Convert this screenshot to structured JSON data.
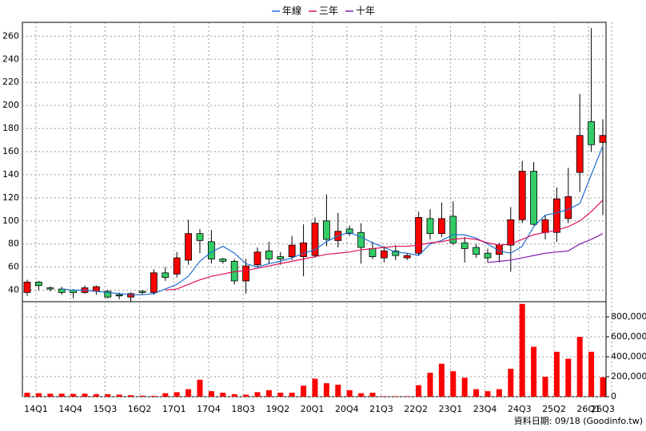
{
  "chart_data": {
    "type": "candlestick",
    "legend": [
      "年線",
      "三年",
      "十年"
    ],
    "source": "資料日期: 09/18 (Goodinfo.tw)",
    "categories": [
      "14Q1",
      null,
      null,
      "14Q4",
      null,
      null,
      "15Q3",
      null,
      null,
      "16Q2",
      null,
      null,
      "17Q1",
      null,
      null,
      "17Q4",
      null,
      null,
      "18Q3",
      null,
      null,
      "19Q2",
      null,
      null,
      "20Q1",
      null,
      null,
      "20Q4",
      null,
      null,
      "21Q3",
      null,
      null,
      "22Q2",
      null,
      null,
      "23Q1",
      null,
      null,
      "23Q4",
      null,
      null,
      "24Q3",
      null,
      null,
      "25Q2",
      null,
      null,
      "26Q1",
      null,
      "26Q3"
    ],
    "open": [
      38,
      47,
      42,
      41,
      40,
      38,
      39,
      39,
      36,
      34,
      39,
      38,
      55,
      54,
      66,
      89,
      82,
      67,
      65,
      48,
      62,
      74,
      69,
      69,
      69,
      70,
      100,
      83,
      93,
      90,
      76,
      68,
      74,
      68,
      72,
      102,
      89,
      104,
      81,
      77,
      72,
      71,
      79,
      101,
      143,
      90,
      90,
      102,
      142,
      186,
      168
    ],
    "close": [
      47,
      44,
      41,
      38,
      38,
      42,
      43,
      34,
      35,
      37,
      38,
      55,
      51,
      68,
      89,
      83,
      67,
      65,
      48,
      61,
      73,
      67,
      67,
      79,
      81,
      98,
      84,
      91,
      89,
      77,
      69,
      74,
      70,
      70,
      103,
      89,
      102,
      81,
      76,
      71,
      68,
      79,
      101,
      143,
      97,
      101,
      119,
      121,
      174,
      166,
      174
    ],
    "high": [
      49,
      48,
      43,
      43,
      41,
      44,
      44,
      40,
      38,
      38,
      40,
      58,
      60,
      73,
      101,
      93,
      92,
      68,
      67,
      67,
      77,
      82,
      73,
      87,
      97,
      103,
      123,
      107,
      96,
      98,
      82,
      78,
      79,
      72,
      108,
      110,
      116,
      117,
      86,
      80,
      76,
      81,
      112,
      152,
      151,
      105,
      129,
      146,
      210,
      267,
      188
    ],
    "low": [
      35,
      40,
      39,
      36,
      33,
      37,
      36,
      33,
      32,
      30,
      36,
      36,
      48,
      51,
      62,
      72,
      63,
      63,
      45,
      37,
      60,
      63,
      62,
      66,
      52,
      68,
      78,
      77,
      87,
      63,
      67,
      64,
      66,
      66,
      70,
      84,
      86,
      79,
      64,
      68,
      64,
      64,
      56,
      98,
      96,
      84,
      82,
      98,
      125,
      160,
      105
    ],
    "up_color": "#ff0000",
    "down_color": "#33cc66",
    "series": [
      {
        "name": "年線",
        "color": "#1f6fd0",
        "values": [
          null,
          null,
          null,
          41,
          40,
          40,
          39,
          38,
          37,
          36,
          36,
          37,
          41,
          45,
          52,
          65,
          73,
          78,
          72,
          63,
          60,
          63,
          65,
          68,
          72,
          75,
          82,
          87,
          90,
          86,
          81,
          77,
          73,
          72,
          70,
          80,
          83,
          88,
          88,
          85,
          80,
          74,
          72,
          78,
          95,
          105,
          107,
          110,
          115,
          140,
          165
        ]
      },
      {
        "name": "三年",
        "color": "#e0105a",
        "values": [
          null,
          null,
          null,
          null,
          null,
          null,
          null,
          null,
          null,
          null,
          null,
          null,
          40,
          41,
          45,
          49,
          52,
          54,
          56,
          57,
          59,
          61,
          63,
          65,
          67,
          69,
          71,
          72,
          73,
          75,
          76,
          77,
          78,
          78,
          79,
          81,
          82,
          84,
          85,
          84,
          81,
          79,
          80,
          84,
          88,
          90,
          92,
          95,
          100,
          108,
          118
        ]
      },
      {
        "name": "十年",
        "color": "#8020b0",
        "values": [
          null,
          null,
          null,
          null,
          null,
          null,
          null,
          null,
          null,
          null,
          null,
          null,
          null,
          null,
          null,
          null,
          null,
          null,
          null,
          null,
          null,
          null,
          null,
          null,
          null,
          null,
          null,
          null,
          null,
          null,
          null,
          null,
          null,
          null,
          null,
          null,
          null,
          null,
          null,
          null,
          64,
          65,
          66,
          68,
          70,
          72,
          73,
          74,
          80,
          84,
          89
        ]
      }
    ],
    "ylim": [
      30,
      272
    ],
    "yticks": [
      40,
      60,
      80,
      100,
      120,
      140,
      160,
      180,
      200,
      220,
      240,
      260
    ],
    "grid": true,
    "volume": {
      "color": "#ff0000",
      "values": [
        40000,
        35000,
        30000,
        30000,
        28000,
        30000,
        25000,
        25000,
        20000,
        15000,
        10000,
        8000,
        35000,
        45000,
        75000,
        170000,
        55000,
        40000,
        25000,
        20000,
        45000,
        65000,
        40000,
        40000,
        110000,
        180000,
        135000,
        120000,
        65000,
        35000,
        40000,
        5000,
        5000,
        5000,
        115000,
        240000,
        330000,
        255000,
        190000,
        75000,
        55000,
        75000,
        280000,
        930000,
        500000,
        200000,
        450000,
        380000,
        600000,
        450000,
        195000
      ],
      "ylim": [
        0,
        952000
      ],
      "yticks": [
        0,
        {
          "value": 200000,
          "label": "200,000"
        },
        {
          "value": 400000,
          "label": "400,000"
        },
        {
          "value": 600000,
          "label": "600,000"
        },
        {
          "value": 800000,
          "label": "800,000"
        }
      ]
    }
  }
}
